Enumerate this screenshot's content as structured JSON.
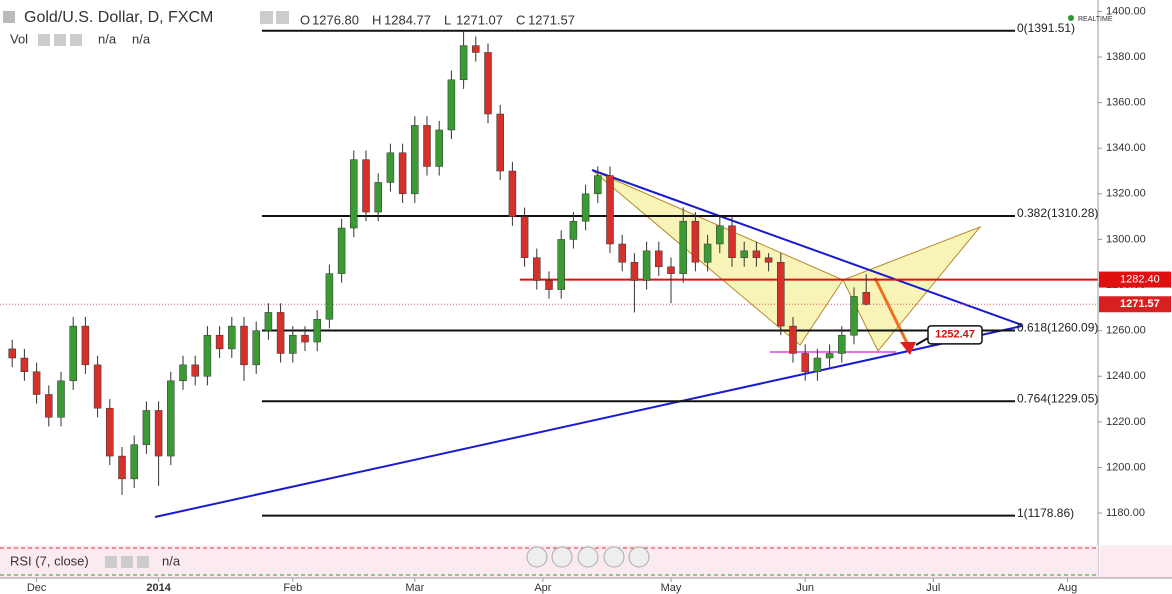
{
  "header": {
    "title": "Gold/U.S. Dollar, D, FXCM",
    "ohlc": [
      {
        "key": "O",
        "value": "1276.80"
      },
      {
        "key": "H",
        "value": "1284.77"
      },
      {
        "key": "L",
        "value": "1271.07"
      },
      {
        "key": "C",
        "value": "1271.57"
      }
    ],
    "vol": "Vol",
    "vol_values": [
      "n/a",
      "n/a"
    ],
    "realtime": "REALTIME"
  },
  "chart_data": {
    "type": "candlestick",
    "x": [
      -4,
      -2,
      0,
      2,
      4,
      6,
      8,
      10,
      12,
      14,
      16,
      18,
      20,
      22,
      24,
      26,
      28,
      30,
      32,
      34,
      36,
      38,
      40,
      42,
      44,
      46,
      48,
      50,
      52,
      54,
      56,
      58,
      60,
      62,
      64,
      66,
      68,
      70,
      72,
      74,
      76,
      78,
      80,
      82,
      84,
      86,
      88,
      90,
      92,
      94,
      96,
      98,
      100,
      102,
      104,
      106,
      108,
      110,
      112,
      114,
      116,
      118,
      120,
      122,
      124,
      126,
      128,
      130,
      132,
      134,
      136
    ],
    "open": [
      1252,
      1248,
      1242,
      1232,
      1222,
      1238,
      1262,
      1245,
      1226,
      1205,
      1195,
      1210,
      1225,
      1205,
      1238,
      1245,
      1240,
      1258,
      1252,
      1262,
      1245,
      1260,
      1268,
      1250,
      1258,
      1255,
      1265,
      1285,
      1305,
      1335,
      1312,
      1325,
      1338,
      1320,
      1350,
      1332,
      1348,
      1370,
      1385,
      1382,
      1355,
      1330,
      1310,
      1292,
      1282,
      1278,
      1300,
      1308,
      1320,
      1328,
      1298,
      1290,
      1282,
      1295,
      1288,
      1285,
      1308,
      1290,
      1298,
      1306,
      1292,
      1295,
      1292,
      1290,
      1262,
      1250,
      1242,
      1248,
      1250,
      1258,
      1276.8
    ],
    "high": [
      1256,
      1252,
      1246,
      1236,
      1242,
      1266,
      1266,
      1249,
      1230,
      1209,
      1214,
      1229,
      1229,
      1242,
      1249,
      1249,
      1262,
      1262,
      1266,
      1266,
      1264,
      1272,
      1272,
      1262,
      1262,
      1269,
      1289,
      1309,
      1339,
      1339,
      1329,
      1342,
      1342,
      1354,
      1354,
      1352,
      1374,
      1391.5,
      1389,
      1386,
      1359,
      1334,
      1314,
      1296,
      1286,
      1304,
      1312,
      1324,
      1332,
      1332,
      1302,
      1294,
      1299,
      1299,
      1292,
      1314,
      1312,
      1302,
      1310,
      1310,
      1299,
      1299,
      1294,
      1294,
      1266,
      1254,
      1252,
      1254,
      1262,
      1279,
      1284.77
    ],
    "low": [
      1244,
      1238,
      1228,
      1218,
      1218,
      1234,
      1241,
      1222,
      1201,
      1188,
      1191,
      1206,
      1192,
      1201,
      1234,
      1236,
      1236,
      1248,
      1248,
      1238,
      1241,
      1256,
      1246,
      1246,
      1251,
      1251,
      1261,
      1281,
      1301,
      1308,
      1308,
      1321,
      1316,
      1316,
      1328,
      1328,
      1344,
      1366,
      1378,
      1351,
      1326,
      1306,
      1288,
      1278,
      1274,
      1274,
      1296,
      1304,
      1316,
      1294,
      1286,
      1268,
      1278,
      1284,
      1272,
      1281,
      1286,
      1286,
      1294,
      1288,
      1288,
      1288,
      1286,
      1258,
      1246,
      1238,
      1238,
      1244,
      1246,
      1254,
      1271.07
    ],
    "close": [
      1248,
      1242,
      1232,
      1222,
      1238,
      1262,
      1245,
      1226,
      1205,
      1195,
      1210,
      1225,
      1205,
      1238,
      1245,
      1240,
      1258,
      1252,
      1262,
      1245,
      1260,
      1268,
      1250,
      1258,
      1255,
      1265,
      1285,
      1305,
      1335,
      1312,
      1325,
      1338,
      1320,
      1350,
      1332,
      1348,
      1370,
      1385,
      1382,
      1355,
      1330,
      1310,
      1292,
      1282,
      1278,
      1300,
      1308,
      1320,
      1328,
      1298,
      1290,
      1282,
      1295,
      1288,
      1285,
      1308,
      1290,
      1298,
      1306,
      1292,
      1295,
      1292,
      1290,
      1262,
      1250,
      1242,
      1248,
      1250,
      1258,
      1275,
      1271.57
    ],
    "up_color": "#3c9a34",
    "down_color": "#d6302a",
    "xlim": [
      -6,
      174
    ],
    "xticks": [
      {
        "value": 0,
        "label": "Dec"
      },
      {
        "value": 20,
        "label": "2014"
      },
      {
        "value": 42,
        "label": "Feb"
      },
      {
        "value": 62,
        "label": "Mar"
      },
      {
        "value": 83,
        "label": "Apr"
      },
      {
        "value": 104,
        "label": "May"
      },
      {
        "value": 126,
        "label": "Jun"
      },
      {
        "value": 147,
        "label": "Jul"
      },
      {
        "value": 169,
        "label": "Aug"
      }
    ],
    "ylim": [
      1166,
      1405
    ],
    "yticks": [
      {
        "value": 1180,
        "label": "1180.00"
      },
      {
        "value": 1200,
        "label": "1200.00"
      },
      {
        "value": 1220,
        "label": "1220.00"
      },
      {
        "value": 1240,
        "label": "1240.00"
      },
      {
        "value": 1260,
        "label": "1260.00"
      },
      {
        "value": 1280,
        "label": "1280.00"
      },
      {
        "value": 1300,
        "label": "1300.00"
      },
      {
        "value": 1320,
        "label": "1320.00"
      },
      {
        "value": 1340,
        "label": "1340.00"
      },
      {
        "value": 1360,
        "label": "1360.00"
      },
      {
        "value": 1380,
        "label": "1380.00"
      },
      {
        "value": 1400,
        "label": "1400.00"
      }
    ],
    "fib_levels": [
      {
        "value": 1391.51,
        "label": "0(1391.51)"
      },
      {
        "value": 1310.28,
        "label": "0.382(1310.28)"
      },
      {
        "value": 1260.09,
        "label": "0.618(1260.09)"
      },
      {
        "value": 1229.05,
        "label": "0.764(1229.05)"
      },
      {
        "value": 1178.86,
        "label": "1(1178.86)"
      }
    ],
    "resistance": {
      "value": 1282.4,
      "label": "1282.40"
    },
    "last_price": {
      "value": 1271.57,
      "label": "1271.57"
    },
    "target": {
      "value": 1252.47,
      "label": "1252.47"
    }
  },
  "rsi": {
    "title": "RSI (7, close)",
    "value": "n/a"
  }
}
